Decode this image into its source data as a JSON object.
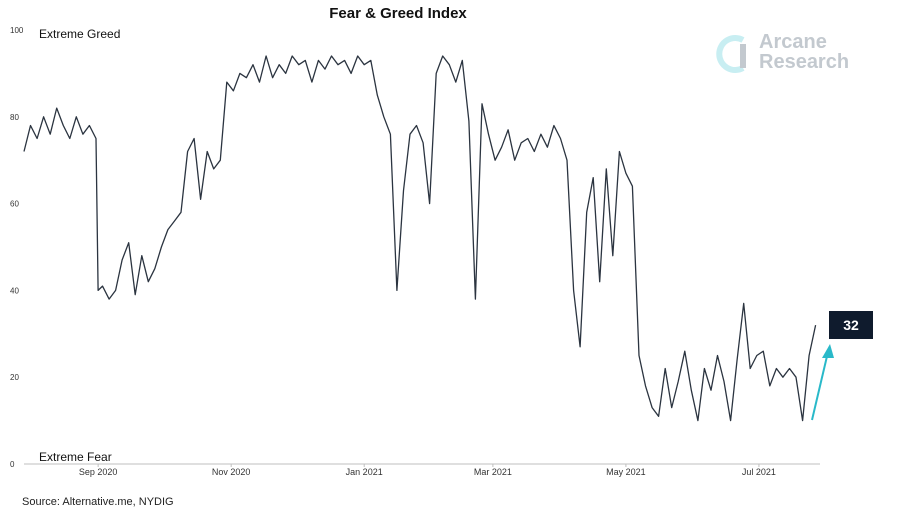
{
  "title": "Fear & Greed Index",
  "source": "Source: Alternative.me, NYDIG",
  "logo": {
    "line1": "Arcane",
    "line2": "Research",
    "icon": "arcane-logo-icon"
  },
  "colors": {
    "line": "#2b3440",
    "arrow": "#29b9c9",
    "badge": "#0f1b2d",
    "logo": "#c3c9cf"
  },
  "chart_data": {
    "type": "line",
    "title": "Fear & Greed Index",
    "xlabel": "",
    "ylabel": "",
    "ylim": [
      0,
      100
    ],
    "yticks": [
      "0",
      "20",
      "40",
      "60",
      "80",
      "100"
    ],
    "xticks": [
      "Sep 2020",
      "Nov 2020",
      "Jan 2021",
      "Mar 2021",
      "May 2021",
      "Jul 2021"
    ],
    "xlim": [
      "2020-07-29",
      "2021-07-29"
    ],
    "grid": false,
    "annotations": {
      "top": "Extreme Greed",
      "bottom": "Extreme Fear",
      "last_value": "32"
    },
    "series": [
      {
        "x": [
          "2020-07-29",
          "2020-08-01",
          "2020-08-04",
          "2020-08-07",
          "2020-08-10",
          "2020-08-13",
          "2020-08-16",
          "2020-08-19",
          "2020-08-22",
          "2020-08-25",
          "2020-08-28",
          "2020-08-31",
          "2020-09-01",
          "2020-09-03",
          "2020-09-06",
          "2020-09-09",
          "2020-09-12",
          "2020-09-15",
          "2020-09-18",
          "2020-09-21",
          "2020-09-24",
          "2020-09-27",
          "2020-09-30",
          "2020-10-03",
          "2020-10-06",
          "2020-10-09",
          "2020-10-12",
          "2020-10-15",
          "2020-10-18",
          "2020-10-21",
          "2020-10-24",
          "2020-10-27",
          "2020-10-30",
          "2020-11-02",
          "2020-11-05",
          "2020-11-08",
          "2020-11-11",
          "2020-11-14",
          "2020-11-17",
          "2020-11-20",
          "2020-11-23",
          "2020-11-26",
          "2020-11-29",
          "2020-12-02",
          "2020-12-05",
          "2020-12-08",
          "2020-12-11",
          "2020-12-14",
          "2020-12-17",
          "2020-12-20",
          "2020-12-23",
          "2020-12-26",
          "2020-12-29",
          "2021-01-01",
          "2021-01-04",
          "2021-01-07",
          "2021-01-10",
          "2021-01-13",
          "2021-01-16",
          "2021-01-19",
          "2021-01-22",
          "2021-01-25",
          "2021-01-28",
          "2021-01-31",
          "2021-02-03",
          "2021-02-06",
          "2021-02-09",
          "2021-02-12",
          "2021-02-15",
          "2021-02-18",
          "2021-02-21",
          "2021-02-24",
          "2021-02-27",
          "2021-03-02",
          "2021-03-05",
          "2021-03-08",
          "2021-03-11",
          "2021-03-14",
          "2021-03-17",
          "2021-03-20",
          "2021-03-23",
          "2021-03-26",
          "2021-03-29",
          "2021-04-01",
          "2021-04-04",
          "2021-04-07",
          "2021-04-10",
          "2021-04-13",
          "2021-04-16",
          "2021-04-19",
          "2021-04-22",
          "2021-04-25",
          "2021-04-28",
          "2021-05-01",
          "2021-05-04",
          "2021-05-07",
          "2021-05-10",
          "2021-05-13",
          "2021-05-16",
          "2021-05-19",
          "2021-05-22",
          "2021-05-25",
          "2021-05-28",
          "2021-05-31",
          "2021-06-03",
          "2021-06-06",
          "2021-06-09",
          "2021-06-12",
          "2021-06-15",
          "2021-06-18",
          "2021-06-21",
          "2021-06-24",
          "2021-06-27",
          "2021-06-30",
          "2021-07-03",
          "2021-07-06",
          "2021-07-09",
          "2021-07-12",
          "2021-07-15",
          "2021-07-18",
          "2021-07-21",
          "2021-07-24",
          "2021-07-27"
        ],
        "values": [
          72,
          78,
          75,
          80,
          76,
          82,
          78,
          75,
          80,
          76,
          78,
          75,
          40,
          41,
          38,
          40,
          47,
          51,
          39,
          48,
          42,
          45,
          50,
          54,
          56,
          58,
          72,
          75,
          61,
          72,
          68,
          70,
          88,
          86,
          90,
          89,
          92,
          88,
          94,
          89,
          92,
          90,
          94,
          92,
          93,
          88,
          93,
          91,
          94,
          92,
          93,
          90,
          94,
          92,
          93,
          85,
          80,
          76,
          40,
          63,
          76,
          78,
          74,
          60,
          90,
          94,
          92,
          88,
          93,
          79,
          38,
          83,
          76,
          70,
          73,
          77,
          70,
          74,
          75,
          72,
          76,
          73,
          78,
          75,
          70,
          40,
          27,
          58,
          66,
          42,
          68,
          48,
          72,
          67,
          64,
          25,
          18,
          13,
          11,
          22,
          13,
          19,
          26,
          17,
          10,
          22,
          17,
          25,
          19,
          10,
          24,
          37,
          22,
          25,
          26,
          18,
          22,
          20,
          22,
          20,
          10,
          25,
          32
        ]
      }
    ]
  }
}
